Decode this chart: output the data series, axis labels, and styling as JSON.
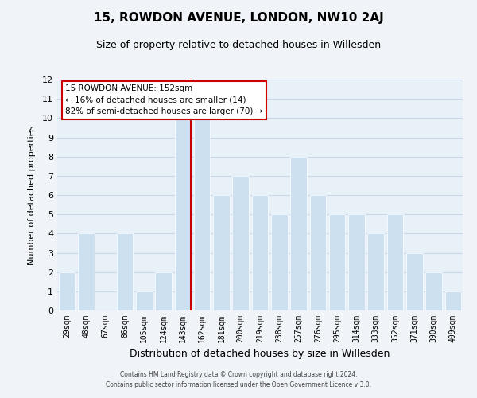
{
  "title": "15, ROWDON AVENUE, LONDON, NW10 2AJ",
  "subtitle": "Size of property relative to detached houses in Willesden",
  "xlabel": "Distribution of detached houses by size in Willesden",
  "ylabel": "Number of detached properties",
  "categories": [
    "29sqm",
    "48sqm",
    "67sqm",
    "86sqm",
    "105sqm",
    "124sqm",
    "143sqm",
    "162sqm",
    "181sqm",
    "200sqm",
    "219sqm",
    "238sqm",
    "257sqm",
    "276sqm",
    "295sqm",
    "314sqm",
    "333sqm",
    "352sqm",
    "371sqm",
    "390sqm",
    "409sqm"
  ],
  "values": [
    2,
    4,
    0,
    4,
    1,
    2,
    10,
    10,
    6,
    7,
    6,
    5,
    8,
    6,
    5,
    5,
    4,
    5,
    3,
    2,
    1
  ],
  "bar_color": "#cce0f0",
  "highlight_index": 6,
  "highlight_line_color": "#cc0000",
  "ylim": [
    0,
    12
  ],
  "yticks": [
    0,
    1,
    2,
    3,
    4,
    5,
    6,
    7,
    8,
    9,
    10,
    11,
    12
  ],
  "annotation_title": "15 ROWDON AVENUE: 152sqm",
  "annotation_line1": "← 16% of detached houses are smaller (14)",
  "annotation_line2": "82% of semi-detached houses are larger (70) →",
  "annotation_box_color": "#ffffff",
  "annotation_box_edge": "#cc0000",
  "grid_color": "#c8d8e8",
  "plot_bg_color": "#e8f0f8",
  "fig_bg_color": "#f0f4f8",
  "footer_line1": "Contains HM Land Registry data © Crown copyright and database right 2024.",
  "footer_line2": "Contains public sector information licensed under the Open Government Licence v 3.0.",
  "title_fontsize": 11,
  "subtitle_fontsize": 9,
  "xlabel_fontsize": 9,
  "ylabel_fontsize": 8,
  "tick_fontsize": 7
}
